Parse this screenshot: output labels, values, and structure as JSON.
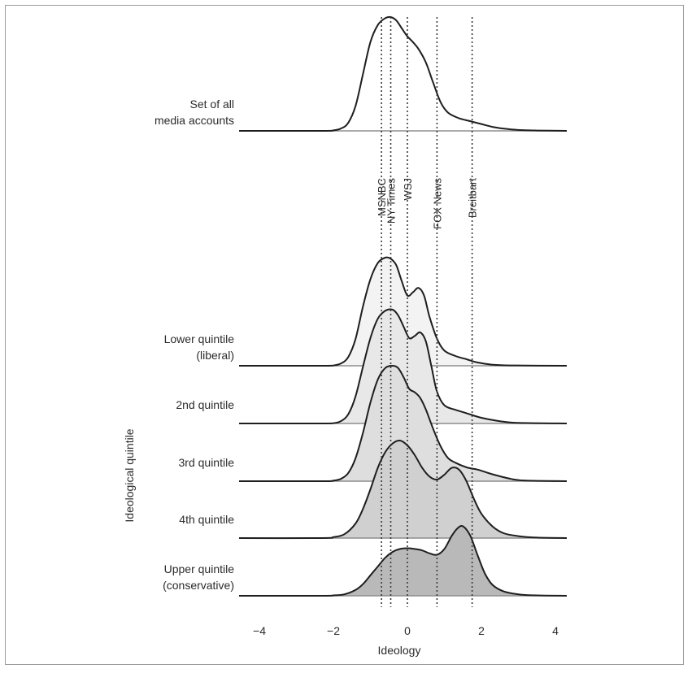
{
  "chart_data": {
    "type": "area",
    "title": "",
    "xlabel": "Ideology",
    "ylabel": "Ideological quintile",
    "xlim": [
      -4.7,
      4.5
    ],
    "x_ticks": [
      {
        "value": -4,
        "label": "−4"
      },
      {
        "value": -2,
        "label": "−2"
      },
      {
        "value": 0,
        "label": "0"
      },
      {
        "value": 2,
        "label": "2"
      },
      {
        "value": 4,
        "label": "4"
      }
    ],
    "grid": false,
    "media_outlets": [
      {
        "name": "MSNBC",
        "ideology": -0.7
      },
      {
        "name": "NY Times",
        "ideology": -0.45
      },
      {
        "name": "WSJ",
        "ideology": 0.0
      },
      {
        "name": "FOX News",
        "ideology": 0.8
      },
      {
        "name": "Breitbart",
        "ideology": 1.75
      }
    ],
    "series": [
      {
        "name": "Set of all media accounts",
        "fill": "#ffffff",
        "x": [
          -4.4,
          -2.3,
          -2.0,
          -1.8,
          -1.6,
          -1.4,
          -1.2,
          -1.0,
          -0.8,
          -0.6,
          -0.45,
          -0.3,
          -0.15,
          0.0,
          0.15,
          0.3,
          0.5,
          0.7,
          0.9,
          1.1,
          1.4,
          1.7,
          2.0,
          2.3,
          2.6,
          3.0,
          3.5,
          4.4
        ],
        "density": [
          0,
          0,
          0.004,
          0.02,
          0.07,
          0.22,
          0.5,
          0.78,
          0.93,
          0.99,
          1.0,
          0.97,
          0.9,
          0.83,
          0.78,
          0.72,
          0.6,
          0.42,
          0.25,
          0.16,
          0.11,
          0.085,
          0.06,
          0.035,
          0.02,
          0.008,
          0.003,
          0
        ]
      },
      {
        "name": "Lower quintile (liberal)",
        "fill": "#f3f3f3",
        "x": [
          -4.4,
          -2.3,
          -2.0,
          -1.8,
          -1.6,
          -1.4,
          -1.2,
          -1.0,
          -0.8,
          -0.6,
          -0.45,
          -0.3,
          -0.15,
          0.0,
          0.15,
          0.3,
          0.45,
          0.6,
          0.8,
          1.0,
          1.3,
          1.6,
          1.9,
          2.3,
          2.8,
          4.4
        ],
        "density": [
          0,
          0,
          0.003,
          0.02,
          0.08,
          0.25,
          0.55,
          0.8,
          0.95,
          1.0,
          0.99,
          0.93,
          0.78,
          0.65,
          0.68,
          0.72,
          0.65,
          0.45,
          0.25,
          0.14,
          0.09,
          0.06,
          0.03,
          0.01,
          0.003,
          0
        ]
      },
      {
        "name": "2nd quintile",
        "fill": "#e8e8e8",
        "x": [
          -4.4,
          -2.3,
          -2.0,
          -1.8,
          -1.6,
          -1.4,
          -1.2,
          -1.0,
          -0.8,
          -0.6,
          -0.4,
          -0.25,
          -0.1,
          0.05,
          0.2,
          0.35,
          0.5,
          0.65,
          0.8,
          1.0,
          1.3,
          1.6,
          2.0,
          2.5,
          3.0,
          4.4
        ],
        "density": [
          0,
          0,
          0.003,
          0.02,
          0.08,
          0.24,
          0.5,
          0.75,
          0.92,
          0.99,
          1.0,
          0.95,
          0.85,
          0.75,
          0.77,
          0.8,
          0.72,
          0.5,
          0.28,
          0.16,
          0.12,
          0.09,
          0.05,
          0.02,
          0.005,
          0
        ]
      },
      {
        "name": "3rd quintile",
        "fill": "#dedede",
        "x": [
          -4.4,
          -2.3,
          -2.0,
          -1.8,
          -1.6,
          -1.4,
          -1.2,
          -1.0,
          -0.8,
          -0.6,
          -0.4,
          -0.25,
          -0.1,
          0.05,
          0.2,
          0.35,
          0.5,
          0.7,
          0.9,
          1.1,
          1.3,
          1.6,
          1.9,
          2.3,
          2.8,
          3.2,
          4.4
        ],
        "density": [
          0,
          0,
          0.005,
          0.02,
          0.07,
          0.2,
          0.42,
          0.68,
          0.88,
          0.98,
          1.0,
          0.98,
          0.9,
          0.8,
          0.77,
          0.72,
          0.62,
          0.45,
          0.3,
          0.2,
          0.16,
          0.12,
          0.1,
          0.06,
          0.02,
          0.005,
          0
        ]
      },
      {
        "name": "4th quintile",
        "fill": "#d0d0d0",
        "x": [
          -4.4,
          -2.3,
          -2.0,
          -1.7,
          -1.4,
          -1.2,
          -1.0,
          -0.8,
          -0.6,
          -0.4,
          -0.2,
          0.0,
          0.2,
          0.4,
          0.6,
          0.8,
          1.0,
          1.2,
          1.4,
          1.6,
          1.8,
          2.0,
          2.3,
          2.6,
          3.0,
          3.5,
          4.4
        ],
        "density": [
          0,
          0,
          0.01,
          0.04,
          0.15,
          0.3,
          0.5,
          0.72,
          0.88,
          0.97,
          1.0,
          0.95,
          0.85,
          0.72,
          0.63,
          0.6,
          0.65,
          0.72,
          0.7,
          0.58,
          0.4,
          0.25,
          0.12,
          0.05,
          0.02,
          0.005,
          0
        ]
      },
      {
        "name": "Upper quintile (conservative)",
        "fill": "#b9b9b9",
        "x": [
          -4.4,
          -2.3,
          -2.0,
          -1.7,
          -1.4,
          -1.2,
          -1.0,
          -0.8,
          -0.6,
          -0.4,
          -0.2,
          0.0,
          0.2,
          0.4,
          0.6,
          0.8,
          1.0,
          1.2,
          1.35,
          1.5,
          1.7,
          1.9,
          2.1,
          2.3,
          2.6,
          3.0,
          3.5,
          4.4
        ],
        "density": [
          0,
          0,
          0.005,
          0.02,
          0.08,
          0.16,
          0.28,
          0.4,
          0.52,
          0.6,
          0.64,
          0.65,
          0.64,
          0.62,
          0.58,
          0.56,
          0.64,
          0.82,
          0.92,
          0.95,
          0.82,
          0.55,
          0.3,
          0.15,
          0.06,
          0.02,
          0.005,
          0
        ]
      }
    ],
    "row_labels": [
      {
        "lines": [
          "Set of all",
          "media accounts"
        ]
      },
      {
        "lines": [
          "Lower quintile",
          "(liberal)"
        ]
      },
      {
        "lines": [
          "2nd quintile"
        ]
      },
      {
        "lines": [
          "3rd quintile"
        ]
      },
      {
        "lines": [
          "4th quintile"
        ]
      },
      {
        "lines": [
          "Upper quintile",
          "(conservative)"
        ]
      }
    ]
  }
}
